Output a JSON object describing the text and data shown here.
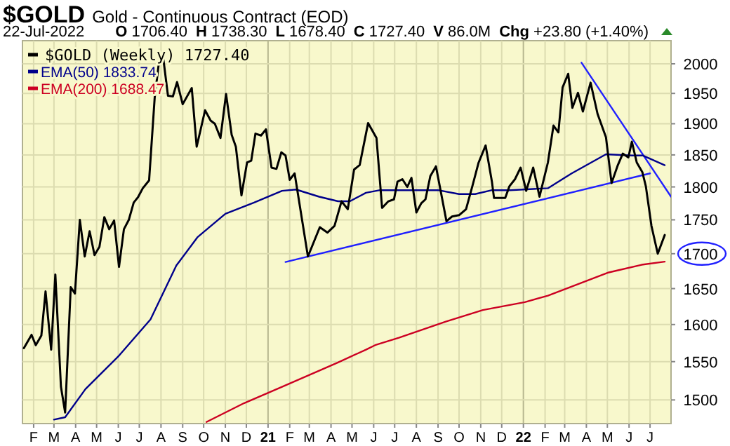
{
  "chart_data": {
    "type": "line",
    "title": "$GOLD",
    "subtitle": "Gold - Continuous Contract (EOD)",
    "annotations": [
      "22-Jul-2022",
      "O 1706.40",
      "H 1738.30",
      "L 1678.40",
      "C 1727.40",
      "V 86.0M",
      "Chg +23.80 (+1.40%)"
    ],
    "log": true,
    "grid": true,
    "legend": "top left",
    "line_style": "solid",
    "xlim": [
      "2020-01-16",
      "2022-07-31"
    ],
    "ylim": [
      1470,
      2040
    ],
    "xticks": [
      {
        "value": "2020-02-01",
        "label": "F"
      },
      {
        "value": "2020-03-01",
        "label": "M"
      },
      {
        "value": "2020-04-01",
        "label": "A"
      },
      {
        "value": "2020-05-01",
        "label": "M"
      },
      {
        "value": "2020-06-01",
        "label": "J"
      },
      {
        "value": "2020-07-01",
        "label": "J"
      },
      {
        "value": "2020-08-01",
        "label": "A"
      },
      {
        "value": "2020-09-01",
        "label": "S"
      },
      {
        "value": "2020-10-01",
        "label": "O"
      },
      {
        "value": "2020-11-01",
        "label": "N"
      },
      {
        "value": "2020-12-01",
        "label": "D"
      },
      {
        "value": "2021-01-01",
        "label": "21"
      },
      {
        "value": "2021-02-01",
        "label": "F"
      },
      {
        "value": "2021-03-01",
        "label": "M"
      },
      {
        "value": "2021-04-01",
        "label": "A"
      },
      {
        "value": "2021-05-01",
        "label": "M"
      },
      {
        "value": "2021-06-01",
        "label": "J"
      },
      {
        "value": "2021-07-01",
        "label": "J"
      },
      {
        "value": "2021-08-01",
        "label": "A"
      },
      {
        "value": "2021-09-01",
        "label": "S"
      },
      {
        "value": "2021-10-01",
        "label": "O"
      },
      {
        "value": "2021-11-01",
        "label": "N"
      },
      {
        "value": "2021-12-01",
        "label": "D"
      },
      {
        "value": "2022-01-01",
        "label": "22"
      },
      {
        "value": "2022-02-01",
        "label": "F"
      },
      {
        "value": "2022-03-01",
        "label": "M"
      },
      {
        "value": "2022-04-01",
        "label": "A"
      },
      {
        "value": "2022-05-01",
        "label": "M"
      },
      {
        "value": "2022-06-01",
        "label": "J"
      },
      {
        "value": "2022-07-01",
        "label": "J"
      }
    ],
    "yticks": [
      1500,
      1550,
      1600,
      1650,
      1700,
      1750,
      1800,
      1850,
      1900,
      1950,
      2000
    ],
    "series": [
      {
        "name": "$GOLD (Weekly) 1727.40",
        "color": "#000000",
        "x": [
          "2020-01-18",
          "2020-01-29",
          "2020-02-04",
          "2020-02-12",
          "2020-02-18",
          "2020-02-26",
          "2020-03-03",
          "2020-03-11",
          "2020-03-17",
          "2020-03-25",
          "2020-03-31",
          "2020-04-07",
          "2020-04-14",
          "2020-04-21",
          "2020-04-28",
          "2020-05-05",
          "2020-05-12",
          "2020-05-19",
          "2020-05-26",
          "2020-06-02",
          "2020-06-09",
          "2020-06-16",
          "2020-06-23",
          "2020-06-29",
          "2020-07-06",
          "2020-07-15",
          "2020-07-23",
          "2020-07-29",
          "2020-08-04",
          "2020-08-11",
          "2020-08-18",
          "2020-08-24",
          "2020-09-01",
          "2020-09-14",
          "2020-09-21",
          "2020-10-03",
          "2020-10-11",
          "2020-10-17",
          "2020-10-25",
          "2020-11-02",
          "2020-11-10",
          "2020-11-16",
          "2020-11-24",
          "2020-12-02",
          "2020-12-08",
          "2020-12-14",
          "2020-12-22",
          "2020-12-29",
          "2021-01-06",
          "2021-01-13",
          "2021-01-20",
          "2021-01-26",
          "2021-02-01",
          "2021-02-08",
          "2021-02-27",
          "2021-03-16",
          "2021-03-27",
          "2021-04-06",
          "2021-04-16",
          "2021-04-25",
          "2021-05-04",
          "2021-05-12",
          "2021-05-24",
          "2021-06-05",
          "2021-06-13",
          "2021-06-22",
          "2021-06-30",
          "2021-07-05",
          "2021-07-12",
          "2021-07-19",
          "2021-07-25",
          "2021-08-01",
          "2021-08-08",
          "2021-08-14",
          "2021-08-21",
          "2021-08-29",
          "2021-09-13",
          "2021-09-21",
          "2021-10-01",
          "2021-10-11",
          "2021-10-20",
          "2021-10-29",
          "2021-11-08",
          "2021-11-17",
          "2021-11-20",
          "2021-12-06",
          "2021-12-12",
          "2021-12-20",
          "2021-12-28",
          "2022-01-05",
          "2022-01-15",
          "2022-01-24",
          "2022-02-05",
          "2022-02-13",
          "2022-02-20",
          "2022-02-26",
          "2022-03-06",
          "2022-03-12",
          "2022-03-20",
          "2022-03-27",
          "2022-04-07",
          "2022-04-17",
          "2022-04-29",
          "2022-05-07",
          "2022-05-16",
          "2022-05-23",
          "2022-05-31",
          "2022-06-05",
          "2022-06-12",
          "2022-06-20",
          "2022-06-25",
          "2022-07-03",
          "2022-07-12",
          "2022-07-22"
        ],
        "values": [
          1568,
          1586,
          1572,
          1585,
          1646,
          1566,
          1670,
          1517,
          1484,
          1652,
          1643,
          1750,
          1696,
          1733,
          1698,
          1710,
          1754,
          1736,
          1749,
          1681,
          1736,
          1750,
          1776,
          1784,
          1798,
          1810,
          1943,
          2002,
          2012,
          1946,
          1945,
          1969,
          1932,
          1959,
          1863,
          1922,
          1905,
          1900,
          1877,
          1949,
          1882,
          1863,
          1787,
          1838,
          1841,
          1884,
          1881,
          1891,
          1830,
          1828,
          1854,
          1849,
          1811,
          1821,
          1696,
          1739,
          1731,
          1741,
          1778,
          1766,
          1827,
          1834,
          1901,
          1877,
          1768,
          1778,
          1781,
          1808,
          1812,
          1800,
          1814,
          1761,
          1775,
          1781,
          1817,
          1832,
          1748,
          1755,
          1757,
          1766,
          1801,
          1838,
          1865,
          1808,
          1783,
          1783,
          1801,
          1812,
          1830,
          1794,
          1830,
          1785,
          1838,
          1897,
          1886,
          1960,
          1983,
          1926,
          1951,
          1920,
          1968,
          1916,
          1878,
          1806,
          1834,
          1852,
          1846,
          1871,
          1838,
          1823,
          1801,
          1741,
          1700,
          1727.4
        ]
      },
      {
        "name": "EMA(50) 1833.74",
        "color": "#00008b",
        "x": [
          "2020-03-01",
          "2020-03-17",
          "2020-04-15",
          "2020-06-01",
          "2020-07-17",
          "2020-08-23",
          "2020-09-22",
          "2020-11-01",
          "2020-12-12",
          "2021-01-21",
          "2021-02-10",
          "2021-03-15",
          "2021-04-11",
          "2021-04-28",
          "2021-05-21",
          "2021-06-10",
          "2021-08-09",
          "2021-09-01",
          "2021-10-01",
          "2021-10-24",
          "2021-11-17",
          "2021-12-13",
          "2022-02-05",
          "2022-03-11",
          "2022-04-29",
          "2022-06-05",
          "2022-06-21",
          "2022-07-22"
        ],
        "values": [
          1475,
          1478,
          1514,
          1557,
          1607,
          1683,
          1724,
          1759,
          1776,
          1794,
          1796,
          1785,
          1778,
          1778,
          1791,
          1795,
          1795,
          1795,
          1789,
          1789,
          1795,
          1795,
          1798,
          1821,
          1851,
          1849,
          1849,
          1833.74
        ]
      },
      {
        "name": "EMA(200) 1688.47",
        "color": "#cc0022",
        "x": [
          "2020-10-05",
          "2020-11-28",
          "2021-01-21",
          "2021-03-15",
          "2021-04-11",
          "2021-05-21",
          "2021-06-03",
          "2021-07-07",
          "2021-09-12",
          "2021-11-04",
          "2022-01-03",
          "2022-02-05",
          "2022-03-30",
          "2022-05-03",
          "2022-06-19",
          "2022-07-22"
        ],
        "values": [
          1472,
          1496,
          1517,
          1538,
          1549,
          1566,
          1572,
          1582,
          1604,
          1620,
          1631,
          1640,
          1660,
          1673,
          1684,
          1688.47
        ]
      },
      {
        "color": "#2020ff",
        "x": [
          "2021-01-26",
          "2022-07-01"
        ],
        "values": [
          1688,
          1821
        ]
      },
      {
        "color": "#2020ff",
        "x": [
          "2022-03-25",
          "2022-07-31"
        ],
        "values": [
          2002,
          1785
        ]
      }
    ]
  }
}
